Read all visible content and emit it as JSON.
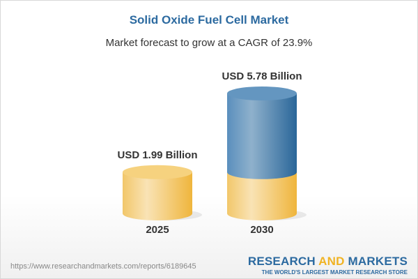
{
  "title": "Solid Oxide Fuel Cell Market",
  "subtitle": "Market forecast to grow at a CAGR of 23.9%",
  "chart_data": {
    "type": "bar",
    "style": "3d-cylinder",
    "categories": [
      "2025",
      "2030"
    ],
    "values": [
      1.99,
      5.78
    ],
    "data_labels": [
      "USD 1.99 Billion",
      "USD 5.78 Billion"
    ],
    "unit": "USD Billion",
    "colors": {
      "base": "#f0c060",
      "growth": "#4a80b0"
    }
  },
  "footer": {
    "url": "https://www.researchandmarkets.com/reports/6189645",
    "brand_part1": "RESEARCH ",
    "brand_part2": "AND",
    "brand_part3": " MARKETS",
    "tagline": "THE WORLD'S LARGEST MARKET RESEARCH STORE"
  }
}
